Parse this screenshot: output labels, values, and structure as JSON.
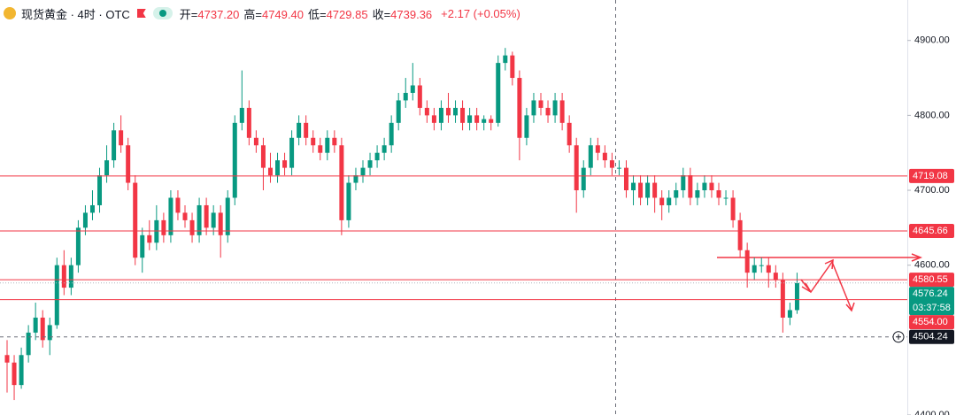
{
  "chart_data": {
    "type": "candlestick",
    "header": {
      "symbol": "现货黄金 · 4时 · OTC",
      "fields": [
        {
          "name": "开=",
          "value": 4737.2,
          "label": "4737.20"
        },
        {
          "name": "高=",
          "value": 4749.4,
          "label": "4749.40"
        },
        {
          "name": "低=",
          "value": 4729.85,
          "label": "4729.85"
        },
        {
          "name": "收=",
          "value": 4739.36,
          "label": "4739.36"
        }
      ],
      "change": "+2.17 (+0.05%)"
    },
    "up_color": "#089981",
    "down_color": "#f23645",
    "ylim": [
      4400,
      4954
    ],
    "yticks": [
      {
        "value": 4900,
        "label": "4900.00"
      },
      {
        "value": 4800,
        "label": "4800.00"
      },
      {
        "value": 4700,
        "label": "4700.00"
      },
      {
        "value": 4600,
        "label": "4600.00"
      },
      {
        "value": 4400,
        "label": "4400.00"
      }
    ],
    "grid": false,
    "levels": [
      4719.08,
      4645.66,
      4580.55,
      {
        "value": 4554,
        "label": "4554.00"
      }
    ],
    "level_color": "#f23645",
    "current": {
      "value": 4576.24,
      "countdown": "03:37:58",
      "color": "#089981"
    },
    "crosshair": {
      "value": 4504.24,
      "color": "#131722"
    },
    "ohlc": [
      [
        4480,
        4500,
        4430,
        4470
      ],
      [
        4470,
        4480,
        4420,
        4440
      ],
      [
        4440,
        4490,
        4435,
        4480
      ],
      [
        4480,
        4520,
        4470,
        4510
      ],
      [
        4510,
        4550,
        4500,
        4530
      ],
      [
        4530,
        4540,
        4490,
        4500
      ],
      [
        4500,
        4530,
        4480,
        4520
      ],
      [
        4520,
        4610,
        4515,
        4600
      ],
      [
        4600,
        4620,
        4560,
        4570
      ],
      [
        4570,
        4610,
        4560,
        4600
      ],
      [
        4600,
        4660,
        4590,
        4650
      ],
      [
        4650,
        4680,
        4640,
        4670
      ],
      [
        4670,
        4700,
        4660,
        4680
      ],
      [
        4680,
        4730,
        4670,
        4720
      ],
      [
        4720,
        4760,
        4710,
        4740
      ],
      [
        4740,
        4790,
        4730,
        4780
      ],
      [
        4780,
        4800,
        4750,
        4760
      ],
      [
        4760,
        4770,
        4700,
        4710
      ],
      [
        4710,
        4720,
        4600,
        4610
      ],
      [
        4610,
        4650,
        4590,
        4640
      ],
      [
        4640,
        4660,
        4620,
        4630
      ],
      [
        4630,
        4680,
        4620,
        4660
      ],
      [
        4660,
        4670,
        4630,
        4640
      ],
      [
        4640,
        4700,
        4630,
        4690
      ],
      [
        4690,
        4700,
        4660,
        4670
      ],
      [
        4670,
        4680,
        4650,
        4660
      ],
      [
        4660,
        4670,
        4630,
        4640
      ],
      [
        4640,
        4690,
        4630,
        4680
      ],
      [
        4680,
        4690,
        4640,
        4650
      ],
      [
        4650,
        4680,
        4640,
        4670
      ],
      [
        4670,
        4680,
        4610,
        4640
      ],
      [
        4640,
        4700,
        4630,
        4690
      ],
      [
        4690,
        4800,
        4680,
        4790
      ],
      [
        4790,
        4860,
        4780,
        4810
      ],
      [
        4810,
        4820,
        4760,
        4770
      ],
      [
        4770,
        4780,
        4750,
        4760
      ],
      [
        4760,
        4770,
        4700,
        4730
      ],
      [
        4730,
        4750,
        4710,
        4720
      ],
      [
        4720,
        4750,
        4710,
        4740
      ],
      [
        4740,
        4750,
        4720,
        4730
      ],
      [
        4730,
        4780,
        4720,
        4770
      ],
      [
        4770,
        4800,
        4760,
        4790
      ],
      [
        4790,
        4800,
        4760,
        4770
      ],
      [
        4770,
        4780,
        4750,
        4760
      ],
      [
        4760,
        4770,
        4740,
        4750
      ],
      [
        4750,
        4780,
        4740,
        4770
      ],
      [
        4770,
        4780,
        4750,
        4760
      ],
      [
        4760,
        4770,
        4640,
        4660
      ],
      [
        4660,
        4720,
        4650,
        4710
      ],
      [
        4710,
        4730,
        4700,
        4720
      ],
      [
        4720,
        4740,
        4710,
        4730
      ],
      [
        4730,
        4750,
        4720,
        4740
      ],
      [
        4740,
        4760,
        4730,
        4750
      ],
      [
        4750,
        4770,
        4740,
        4760
      ],
      [
        4760,
        4800,
        4750,
        4790
      ],
      [
        4790,
        4830,
        4780,
        4820
      ],
      [
        4820,
        4850,
        4810,
        4830
      ],
      [
        4830,
        4870,
        4820,
        4840
      ],
      [
        4840,
        4850,
        4800,
        4810
      ],
      [
        4810,
        4820,
        4790,
        4800
      ],
      [
        4800,
        4810,
        4780,
        4790
      ],
      [
        4790,
        4820,
        4780,
        4810
      ],
      [
        4810,
        4830,
        4790,
        4800
      ],
      [
        4800,
        4820,
        4790,
        4810
      ],
      [
        4810,
        4820,
        4780,
        4790
      ],
      [
        4790,
        4810,
        4780,
        4800
      ],
      [
        4800,
        4810,
        4780,
        4790
      ],
      [
        4790,
        4800,
        4780,
        4795
      ],
      [
        4795,
        4800,
        4780,
        4790
      ],
      [
        4790,
        4880,
        4785,
        4870
      ],
      [
        4870,
        4890,
        4860,
        4880
      ],
      [
        4880,
        4885,
        4840,
        4850
      ],
      [
        4850,
        4860,
        4740,
        4770
      ],
      [
        4770,
        4810,
        4760,
        4800
      ],
      [
        4800,
        4830,
        4790,
        4820
      ],
      [
        4820,
        4830,
        4800,
        4810
      ],
      [
        4810,
        4820,
        4790,
        4800
      ],
      [
        4800,
        4830,
        4790,
        4820
      ],
      [
        4820,
        4830,
        4780,
        4790
      ],
      [
        4790,
        4800,
        4750,
        4760
      ],
      [
        4760,
        4770,
        4670,
        4700
      ],
      [
        4700,
        4740,
        4690,
        4730
      ],
      [
        4730,
        4770,
        4720,
        4760
      ],
      [
        4760,
        4770,
        4740,
        4750
      ],
      [
        4750,
        4760,
        4730,
        4740
      ],
      [
        4740,
        4750,
        4720,
        4730
      ],
      [
        4730,
        4740,
        4720,
        4730
      ],
      [
        4730,
        4740,
        4690,
        4700
      ],
      [
        4700,
        4720,
        4680,
        4710
      ],
      [
        4710,
        4720,
        4680,
        4690
      ],
      [
        4690,
        4720,
        4680,
        4710
      ],
      [
        4710,
        4720,
        4670,
        4690
      ],
      [
        4690,
        4700,
        4660,
        4680
      ],
      [
        4680,
        4700,
        4670,
        4690
      ],
      [
        4690,
        4710,
        4680,
        4700
      ],
      [
        4700,
        4730,
        4690,
        4720
      ],
      [
        4720,
        4730,
        4680,
        4690
      ],
      [
        4690,
        4710,
        4680,
        4700
      ],
      [
        4700,
        4720,
        4690,
        4710
      ],
      [
        4710,
        4720,
        4690,
        4700
      ],
      [
        4700,
        4710,
        4680,
        4690
      ],
      [
        4690,
        4700,
        4680,
        4690
      ],
      [
        4690,
        4700,
        4650,
        4660
      ],
      [
        4660,
        4670,
        4610,
        4620
      ],
      [
        4620,
        4630,
        4570,
        4590
      ],
      [
        4590,
        4610,
        4580,
        4600
      ],
      [
        4600,
        4610,
        4590,
        4600
      ],
      [
        4600,
        4610,
        4570,
        4590
      ],
      [
        4590,
        4600,
        4570,
        4580
      ],
      [
        4580,
        4590,
        4510,
        4530
      ],
      [
        4530,
        4550,
        4520,
        4540
      ],
      [
        4540,
        4590,
        4535,
        4576.24
      ]
    ]
  }
}
